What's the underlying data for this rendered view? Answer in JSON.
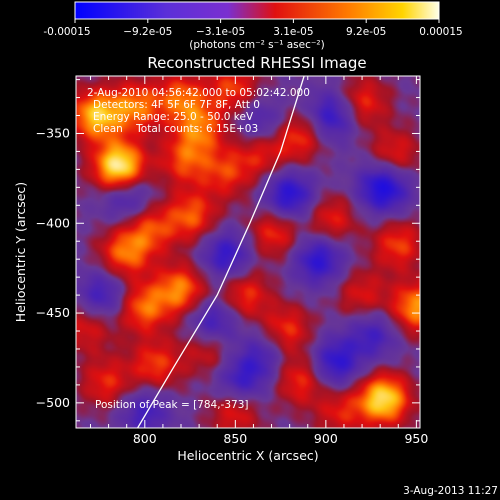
{
  "chart_data": {
    "type": "heatmap",
    "title": "Reconstructed RHESSI Image",
    "xlabel": "Heliocentric X (arcsec)",
    "ylabel": "Heliocentric Y (arcsec)",
    "xlim": [
      762,
      952
    ],
    "ylim": [
      -514,
      -318
    ],
    "x_ticks": [
      800,
      850,
      900,
      950
    ],
    "y_ticks": [
      -350,
      -400,
      -450,
      -500
    ],
    "colorbar": {
      "range": [
        -0.00015,
        0.00015
      ],
      "tick_labels": [
        "-0.00015",
        "−9.2e-05",
        "−3.1e-05",
        "3.1e-05",
        "9.2e-05",
        "0.00015"
      ],
      "unit_label": "(photons cm⁻² s⁻¹ asec⁻²)",
      "colors": [
        "#0000ff",
        "#6633cc",
        "#7a2fd0",
        "#e01010",
        "#ff7a00",
        "#ffff80"
      ]
    },
    "annotations": {
      "time_range": "2-Aug-2010 04:56:42.000 to 05:02:42.000",
      "detectors": "Detectors: 4F 5F 6F 7F 8F, Att 0",
      "energy_range": "Energy Range: 25.0 - 50.0 keV",
      "clean_counts": "Clean    Total counts: 6.15E+03",
      "peak_position": "Position of Peak = [784,-373]"
    },
    "limb_curve": [
      [
        888,
        -318
      ],
      [
        875,
        -360
      ],
      [
        858,
        -400
      ],
      [
        840,
        -440
      ],
      [
        816,
        -480
      ],
      [
        796,
        -514
      ]
    ],
    "blobs": [
      {
        "x": 786,
        "y": -369,
        "amp": 1.0
      },
      {
        "x": 773,
        "y": -340,
        "amp": 0.75
      },
      {
        "x": 795,
        "y": -335,
        "amp": 0.55
      },
      {
        "x": 820,
        "y": -330,
        "amp": 0.5
      },
      {
        "x": 849,
        "y": -325,
        "amp": 0.45
      },
      {
        "x": 831,
        "y": -347,
        "amp": 0.5
      },
      {
        "x": 822,
        "y": -365,
        "amp": 0.45
      },
      {
        "x": 845,
        "y": -372,
        "amp": 0.4
      },
      {
        "x": 803,
        "y": -403,
        "amp": 0.45
      },
      {
        "x": 826,
        "y": -396,
        "amp": 0.5
      },
      {
        "x": 789,
        "y": -417,
        "amp": 0.55
      },
      {
        "x": 820,
        "y": -437,
        "amp": 0.6
      },
      {
        "x": 799,
        "y": -447,
        "amp": 0.55
      },
      {
        "x": 864,
        "y": -360,
        "amp": 0.4
      },
      {
        "x": 885,
        "y": -352,
        "amp": 0.45
      },
      {
        "x": 920,
        "y": -333,
        "amp": 0.45
      },
      {
        "x": 938,
        "y": -362,
        "amp": 0.4
      },
      {
        "x": 872,
        "y": -405,
        "amp": 0.45
      },
      {
        "x": 903,
        "y": -398,
        "amp": 0.4
      },
      {
        "x": 940,
        "y": -412,
        "amp": 0.45
      },
      {
        "x": 855,
        "y": -440,
        "amp": 0.45
      },
      {
        "x": 878,
        "y": -460,
        "amp": 0.45
      },
      {
        "x": 950,
        "y": -447,
        "amp": 0.65
      },
      {
        "x": 920,
        "y": -440,
        "amp": 0.35
      },
      {
        "x": 886,
        "y": -487,
        "amp": 0.45
      },
      {
        "x": 806,
        "y": -479,
        "amp": 0.45
      },
      {
        "x": 779,
        "y": -489,
        "amp": 0.4
      },
      {
        "x": 932,
        "y": -498,
        "amp": 0.85
      },
      {
        "x": 850,
        "y": -505,
        "amp": 0.4
      },
      {
        "x": 908,
        "y": -505,
        "amp": 0.35
      },
      {
        "x": 768,
        "y": -458,
        "amp": 0.35
      },
      {
        "x": 835,
        "y": -470,
        "amp": 0.35
      },
      {
        "x": 880,
        "y": -385,
        "amp": -0.6
      },
      {
        "x": 864,
        "y": -345,
        "amp": -0.4
      },
      {
        "x": 904,
        "y": -340,
        "amp": -0.55
      },
      {
        "x": 932,
        "y": -380,
        "amp": -0.7
      },
      {
        "x": 896,
        "y": -420,
        "amp": -0.55
      },
      {
        "x": 845,
        "y": -418,
        "amp": -0.5
      },
      {
        "x": 790,
        "y": -385,
        "amp": -0.45
      },
      {
        "x": 777,
        "y": -440,
        "amp": -0.45
      },
      {
        "x": 838,
        "y": -455,
        "amp": -0.5
      },
      {
        "x": 905,
        "y": -478,
        "amp": -0.55
      },
      {
        "x": 853,
        "y": -488,
        "amp": -0.45
      },
      {
        "x": 800,
        "y": -505,
        "amp": -0.4
      },
      {
        "x": 926,
        "y": -462,
        "amp": -0.4
      },
      {
        "x": 866,
        "y": -473,
        "amp": -0.35
      }
    ]
  },
  "footer": {
    "date_stamp": "3-Aug-2013 11:27"
  }
}
